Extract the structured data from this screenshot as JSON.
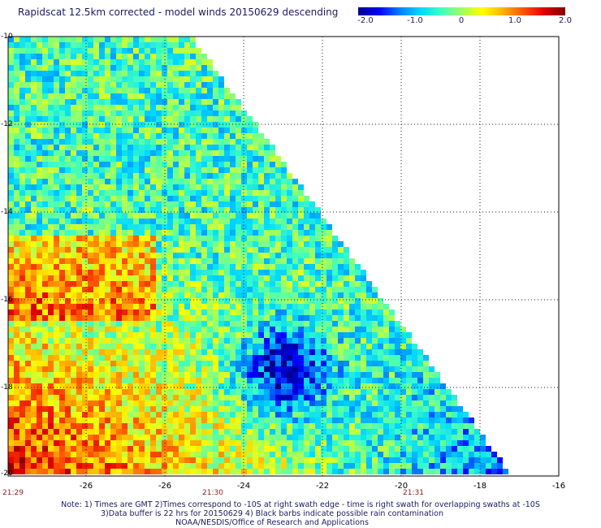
{
  "title": "Rapidscat 12.5km corrected - model winds 20150629 descending",
  "colorbar": {
    "labels": [
      "-2.0",
      "-1.0",
      "0",
      "1.0",
      "2.0"
    ],
    "values": [
      -2.0,
      -1.0,
      0,
      1.0,
      2.0
    ],
    "range": [
      -2.0,
      2.0
    ],
    "colors": [
      "#00008b",
      "#0000ff",
      "#0080ff",
      "#00d8ff",
      "#40ffc0",
      "#a0ff60",
      "#ffff00",
      "#ffb000",
      "#ff5000",
      "#e00000",
      "#800000"
    ]
  },
  "axes": {
    "y_labels": [
      "-10",
      "-12",
      "-14",
      "-16",
      "-18",
      "-20"
    ],
    "x_labels": [
      "-26",
      "-26",
      "-24",
      "-22",
      "-20",
      "-18",
      "-16"
    ],
    "lon_range": [
      -30,
      -16
    ],
    "lat_range": [
      -20,
      -10
    ]
  },
  "times": [
    {
      "label": "21:29",
      "lon": -30
    },
    {
      "label": "21:30",
      "lon": -25.2
    },
    {
      "label": "21:31",
      "lon": -20.3
    }
  ],
  "notes": [
    "Note: 1) Times are GMT 2)Times correspond to -10S at right swath edge - time is right swath for overlapping swaths at -10S",
    "3)Data buffer is 22 hrs for 20150629 4) Black barbs indicate possible rain contamination",
    "NOAA/NESDIS/Office of Research and Applications"
  ]
}
